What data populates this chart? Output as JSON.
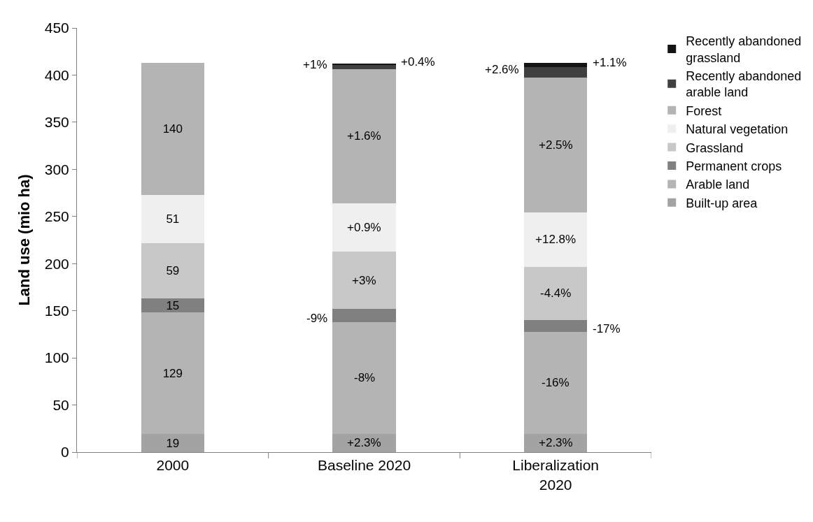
{
  "chart_data": {
    "type": "bar",
    "stacked": true,
    "ylabel": "Land use (mio ha)",
    "categories": [
      "2000",
      "Baseline 2020",
      "Liberalization 2020"
    ],
    "ylim": [
      0,
      450
    ],
    "yticks": [
      0,
      50,
      100,
      150,
      200,
      250,
      300,
      350,
      400,
      450
    ],
    "legend": "right",
    "series": [
      {
        "name": "Built-up area",
        "color": "#a3a3a3",
        "values": [
          19,
          19.4,
          19.4
        ],
        "value_labels": [
          "19",
          null,
          null
        ]
      },
      {
        "name": "Arable land",
        "color": "#b4b4b4",
        "values": [
          129,
          118.7,
          108.4
        ],
        "value_labels": [
          "129",
          null,
          null
        ]
      },
      {
        "name": "Permanent crops",
        "color": "#808080",
        "values": [
          15,
          13.7,
          12.5
        ],
        "value_labels": [
          "15",
          null,
          null
        ]
      },
      {
        "name": "Grassland",
        "color": "#c8c8c8",
        "values": [
          59,
          60.8,
          56.4
        ],
        "value_labels": [
          "59",
          null,
          null
        ]
      },
      {
        "name": "Natural vegetation",
        "color": "#efefef",
        "values": [
          51,
          51.5,
          57.5
        ],
        "value_labels": [
          "51",
          null,
          null
        ]
      },
      {
        "name": "Forest",
        "color": "#b4b4b4",
        "values": [
          140,
          142.2,
          143.5
        ],
        "value_labels": [
          "140",
          null,
          null
        ]
      },
      {
        "name": "Recently abandoned arable land",
        "color": "#404040",
        "values": [
          null,
          4.1,
          10.7
        ]
      },
      {
        "name": "Recently abandoned grassland",
        "color": "#141414",
        "values": [
          null,
          1.6,
          4.5
        ]
      }
    ],
    "annotations": [
      "+2.3%",
      "-8%",
      "-9%",
      "+3%",
      "+0.9%",
      "+1.6%",
      "+1%",
      "+0.4%",
      "+2.3%",
      "-16%",
      "-17%",
      "-4.4%",
      "+12.8%",
      "+2.5%",
      "+2.6%",
      "+1.1%"
    ]
  }
}
